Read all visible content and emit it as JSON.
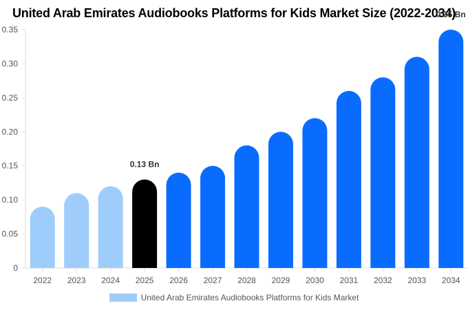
{
  "chart_data": {
    "type": "bar",
    "title": "United Arab Emirates Audiobooks Platforms for Kids Market Size (2022-2034)",
    "categories": [
      "2022",
      "2023",
      "2024",
      "2025",
      "2026",
      "2027",
      "2028",
      "2029",
      "2030",
      "2031",
      "2032",
      "2033",
      "2034"
    ],
    "series": [
      {
        "name": "United Arab Emirates Audiobooks Platforms for Kids Market",
        "values": [
          0.09,
          0.11,
          0.12,
          0.13,
          0.14,
          0.15,
          0.18,
          0.2,
          0.22,
          0.26,
          0.28,
          0.31,
          0.35
        ]
      }
    ],
    "bar_colors": [
      "#9fcdfb",
      "#9fcdfb",
      "#9fcdfb",
      "#000000",
      "#0a6cff",
      "#0a6cff",
      "#0a6cff",
      "#0a6cff",
      "#0a6cff",
      "#0a6cff",
      "#0a6cff",
      "#0a6cff",
      "#0a6cff"
    ],
    "legend_color": "#9fcdfb",
    "data_labels": [
      {
        "category": "2025",
        "text": "0.13 Bn"
      },
      {
        "category": "2034",
        "text": "0.35 Bn"
      }
    ],
    "yticks": [
      "0",
      "0.05",
      "0.10",
      "0.15",
      "0.20",
      "0.25",
      "0.30",
      "0.35"
    ],
    "ylim": [
      0,
      0.35
    ],
    "xlabel": "",
    "ylabel": "",
    "grid": false,
    "legend_position": "bottom"
  }
}
